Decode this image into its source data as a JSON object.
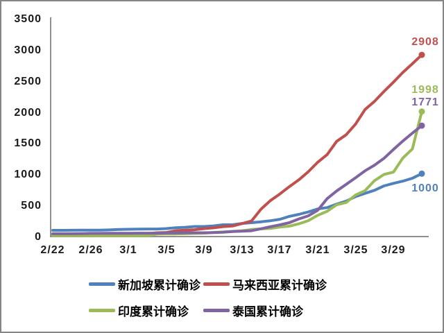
{
  "chart_data": {
    "type": "line",
    "title": "",
    "xlabel": "",
    "ylabel": "",
    "grid": false,
    "legend_position": "bottom",
    "ylim": [
      0,
      3500
    ],
    "y_tick_step": 500,
    "y_ticks": [
      "3500",
      "3000",
      "2500",
      "2000",
      "1500",
      "1000",
      "500",
      "0"
    ],
    "x": [
      "2/22",
      "2/23",
      "2/24",
      "2/25",
      "2/26",
      "2/27",
      "2/28",
      "2/29",
      "3/1",
      "3/2",
      "3/3",
      "3/4",
      "3/5",
      "3/6",
      "3/7",
      "3/8",
      "3/9",
      "3/10",
      "3/11",
      "3/12",
      "3/13",
      "3/14",
      "3/15",
      "3/16",
      "3/17",
      "3/18",
      "3/19",
      "3/20",
      "3/21",
      "3/22",
      "3/23",
      "3/24",
      "3/25",
      "3/26",
      "3/27",
      "3/28",
      "3/29",
      "3/30",
      "3/31",
      "4/1"
    ],
    "x_tick_labels": [
      "2/22",
      "2/26",
      "3/1",
      "3/5",
      "3/9",
      "3/13",
      "3/17",
      "3/21",
      "3/25",
      "3/29"
    ],
    "series": [
      {
        "name": "新加坡累计确诊",
        "color": "#4F81BD",
        "end_label": "1000",
        "values": [
          89,
          89,
          90,
          91,
          93,
          93,
          96,
          102,
          106,
          108,
          110,
          110,
          117,
          130,
          138,
          150,
          150,
          160,
          178,
          178,
          200,
          212,
          226,
          243,
          266,
          313,
          345,
          385,
          432,
          455,
          509,
          558,
          631,
          683,
          732,
          802,
          844,
          879,
          926,
          1000
        ]
      },
      {
        "name": "马来西亚累计确诊",
        "color": "#C0504D",
        "end_label": "2908",
        "values": [
          22,
          22,
          22,
          22,
          22,
          23,
          24,
          25,
          29,
          29,
          36,
          50,
          55,
          83,
          93,
          99,
          117,
          129,
          149,
          158,
          197,
          238,
          428,
          566,
          673,
          790,
          900,
          1030,
          1183,
          1306,
          1518,
          1624,
          1796,
          2031,
          2161,
          2320,
          2470,
          2626,
          2766,
          2908
        ]
      },
      {
        "name": "印度累计确诊",
        "color": "#9BBB59",
        "end_label": "1998",
        "values": [
          3,
          3,
          3,
          3,
          3,
          3,
          3,
          3,
          3,
          5,
          5,
          28,
          30,
          31,
          34,
          39,
          43,
          56,
          62,
          73,
          82,
          102,
          113,
          119,
          142,
          156,
          194,
          244,
          330,
          396,
          499,
          536,
          657,
          727,
          887,
          987,
          1024,
          1251,
          1397,
          1998
        ]
      },
      {
        "name": "泰国累计确诊",
        "color": "#8064A2",
        "end_label": "1771",
        "values": [
          35,
          35,
          35,
          37,
          40,
          40,
          41,
          42,
          42,
          43,
          43,
          43,
          47,
          48,
          50,
          50,
          50,
          53,
          59,
          70,
          75,
          82,
          114,
          147,
          177,
          212,
          272,
          322,
          411,
          599,
          721,
          827,
          934,
          1045,
          1136,
          1245,
          1388,
          1524,
          1651,
          1771
        ]
      }
    ],
    "axis_color": "#8f8f8f",
    "text_color": "#1a1a1a"
  }
}
